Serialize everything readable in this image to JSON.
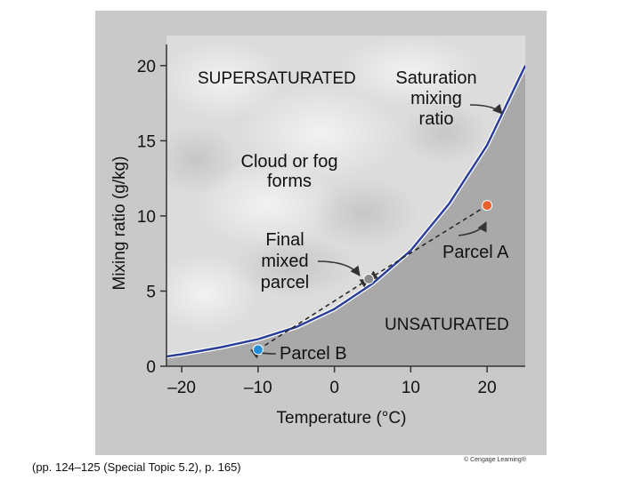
{
  "chart_data": {
    "type": "line",
    "title": "",
    "xlabel": "Temperature (°C)",
    "ylabel": "Mixing ratio (g/kg)",
    "xlim": [
      -22,
      25
    ],
    "ylim": [
      0,
      22
    ],
    "x_ticks": [
      "–20",
      "–10",
      "0",
      "10",
      "20"
    ],
    "x_tick_values": [
      -20,
      -10,
      0,
      10,
      20
    ],
    "y_ticks": [
      "0",
      "5",
      "10",
      "15",
      "20"
    ],
    "y_tick_values": [
      0,
      5,
      10,
      15,
      20
    ],
    "grid": false,
    "series": [
      {
        "name": "Saturation mixing ratio",
        "color": "#2b3f9a",
        "x": [
          -22,
          -20,
          -15,
          -10,
          -5,
          0,
          5,
          10,
          15,
          20,
          25
        ],
        "y": [
          0.65,
          0.8,
          1.25,
          1.8,
          2.6,
          3.8,
          5.5,
          7.7,
          10.8,
          14.7,
          20.0
        ]
      }
    ],
    "points": [
      {
        "label": "Parcel A",
        "x": 20,
        "y": 10.7,
        "color": "#e8612c"
      },
      {
        "label": "Parcel B",
        "x": -10,
        "y": 1.1,
        "color": "#1f8fd6"
      },
      {
        "label": "Final mixed parcel",
        "x": 4.5,
        "y": 5.8,
        "color": "#8c8c8c"
      }
    ],
    "region_labels": {
      "supersaturated": "SUPERSATURATED",
      "unsaturated": "UNSATURATED",
      "cloud_line1": "Cloud or fog",
      "cloud_line2": "forms"
    },
    "annotations": {
      "saturation": [
        "Saturation",
        "mixing",
        "ratio"
      ],
      "final": [
        "Final",
        "mixed",
        "parcel"
      ],
      "parcel_a": "Parcel A",
      "parcel_b": "Parcel B"
    }
  },
  "caption": "(pp. 124–125 (Special Topic 5.2), p. 165)",
  "credit": "© Cengage Learning®"
}
